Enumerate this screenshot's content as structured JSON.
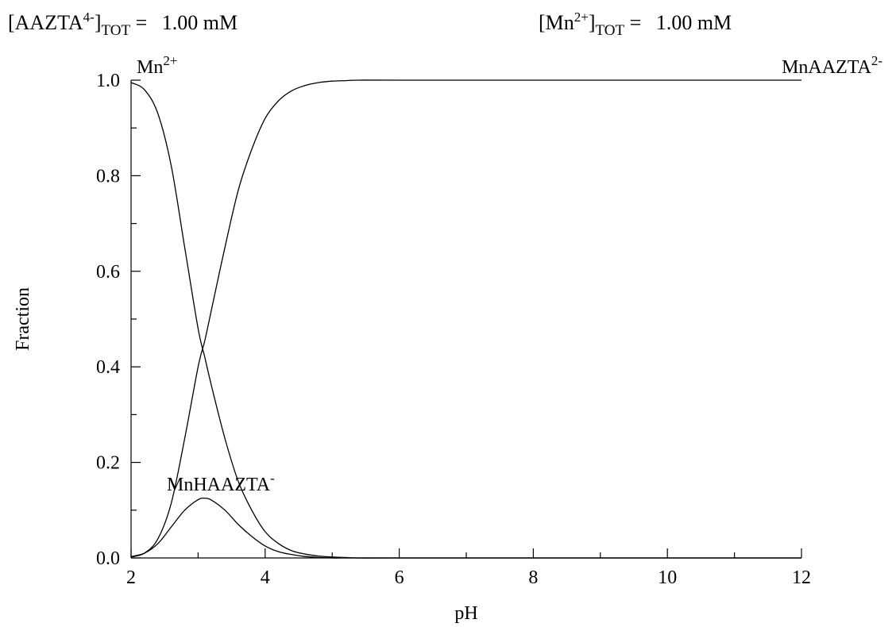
{
  "header": {
    "ligand": {
      "open": "[AAZTA",
      "charge": "4-",
      "close": "]",
      "subscript": "TOT",
      "equals": " = ",
      "value": "1.00 mM"
    },
    "metal": {
      "open": "[Mn",
      "charge": "2+",
      "close": "]",
      "subscript": "TOT",
      "equals": " = ",
      "value": "1.00 mM"
    }
  },
  "chart_data": {
    "type": "line",
    "xlabel": "pH",
    "ylabel": "Fraction",
    "xlim": [
      2,
      12
    ],
    "ylim": [
      0,
      1
    ],
    "x_ticks": [
      "2",
      "4",
      "6",
      "8",
      "10",
      "12"
    ],
    "y_ticks": [
      "0.0",
      "0.2",
      "0.4",
      "0.6",
      "0.8",
      "1.0"
    ],
    "grid": false,
    "legend": "none",
    "line_color": "#000000",
    "series": [
      {
        "name": "Mn2+",
        "label_base": "Mn",
        "label_charge": "2+",
        "x": [
          2.0,
          2.2,
          2.4,
          2.6,
          2.8,
          3.0,
          3.1,
          3.2,
          3.4,
          3.6,
          3.8,
          4.0,
          4.2,
          4.4,
          4.6,
          4.8,
          5.0,
          5.2,
          5.4,
          6.0,
          8.0,
          10.0,
          12.0
        ],
        "y": [
          0.995,
          0.98,
          0.93,
          0.82,
          0.65,
          0.48,
          0.42,
          0.36,
          0.25,
          0.16,
          0.1,
          0.055,
          0.03,
          0.015,
          0.008,
          0.004,
          0.002,
          0.001,
          0.0,
          0.0,
          0.0,
          0.0,
          0.0
        ]
      },
      {
        "name": "MnHAAZTA-",
        "label_base": "MnHAAZTA",
        "label_charge": "-",
        "x": [
          2.0,
          2.2,
          2.4,
          2.6,
          2.8,
          3.0,
          3.1,
          3.2,
          3.4,
          3.6,
          3.8,
          4.0,
          4.2,
          4.4,
          4.6,
          4.8,
          5.0,
          5.2,
          5.4,
          6.0,
          8.0,
          10.0,
          12.0
        ],
        "y": [
          0.003,
          0.01,
          0.03,
          0.065,
          0.1,
          0.122,
          0.125,
          0.121,
          0.1,
          0.07,
          0.045,
          0.025,
          0.013,
          0.007,
          0.003,
          0.001,
          0.0,
          0.0,
          0.0,
          0.0,
          0.0,
          0.0,
          0.0
        ]
      },
      {
        "name": "MnAAZTA2-",
        "label_base": "MnAAZTA",
        "label_charge": "2-",
        "x": [
          2.0,
          2.2,
          2.4,
          2.6,
          2.8,
          3.0,
          3.1,
          3.2,
          3.4,
          3.6,
          3.8,
          4.0,
          4.2,
          4.4,
          4.6,
          4.8,
          5.0,
          5.2,
          5.4,
          6.0,
          8.0,
          10.0,
          12.0
        ],
        "y": [
          0.002,
          0.01,
          0.04,
          0.115,
          0.25,
          0.4,
          0.455,
          0.52,
          0.65,
          0.77,
          0.855,
          0.92,
          0.957,
          0.978,
          0.989,
          0.995,
          0.998,
          0.999,
          1.0,
          1.0,
          1.0,
          1.0,
          1.0
        ]
      }
    ]
  }
}
